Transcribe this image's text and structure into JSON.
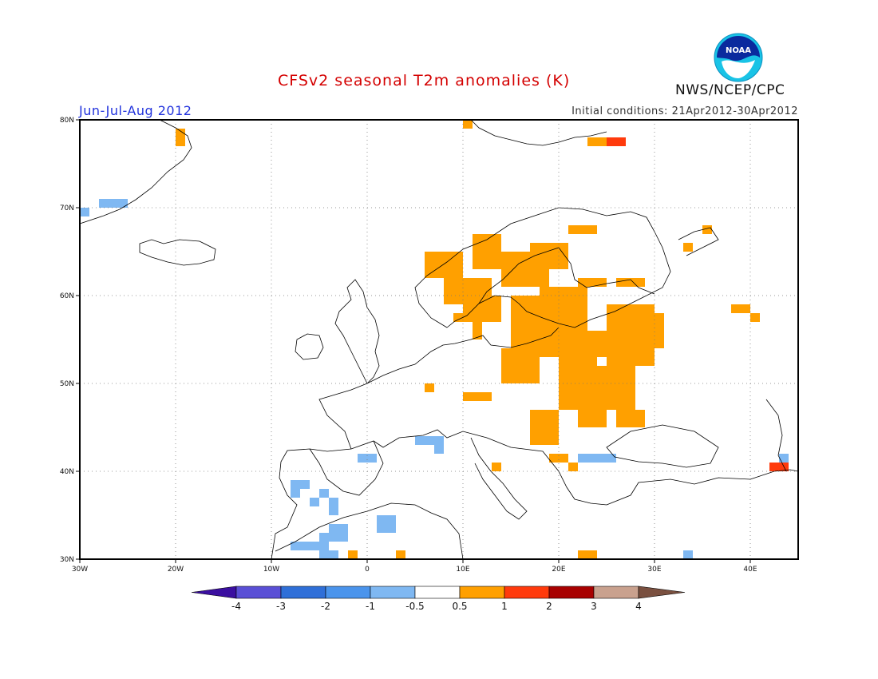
{
  "title": "CFSv2 seasonal T2m anomalies (K)",
  "season": "Jun-Jul-Aug 2012",
  "initial_conditions": "Initial conditions: 21Apr2012-30Apr2012",
  "agency": "NWS/NCEP/CPC",
  "logo_text": "NOAA",
  "map": {
    "lon_range": [
      -30,
      45
    ],
    "lat_range": [
      30,
      80
    ],
    "lat_labels": [
      "80N",
      "70N",
      "60N",
      "50N",
      "40N",
      "30N"
    ],
    "lon_labels": [
      "30W",
      "20W",
      "10W",
      "0",
      "10E",
      "20E",
      "30E",
      "40E"
    ],
    "grid": "dotted every 10 degrees"
  },
  "colorbar": {
    "labels": [
      "-4",
      "-3",
      "-2",
      "-1",
      "-0.5",
      "0.5",
      "1",
      "2",
      "3",
      "4"
    ],
    "colors": [
      "#3b0fa0",
      "#5a4fd6",
      "#2f6fd8",
      "#4a94ec",
      "#7fb8f2",
      "#ffffff",
      "#ffa000",
      "#ff3a0c",
      "#a80000",
      "#c9a18e",
      "#7a5040"
    ]
  },
  "anomaly_colors": {
    "warm": "#ffa000",
    "hot": "#ff3a0c",
    "cool": "#7fb8f2",
    "cool2": "#4a94ec"
  },
  "cells": {
    "warm": [
      [
        10,
        57,
        4,
        3
      ],
      [
        8,
        59,
        5,
        3
      ],
      [
        6,
        62,
        4,
        3
      ],
      [
        14,
        61,
        5,
        4
      ],
      [
        17,
        63,
        4,
        3
      ],
      [
        11,
        63,
        3,
        4
      ],
      [
        18,
        54,
        5,
        7
      ],
      [
        15,
        53,
        6,
        7
      ],
      [
        22,
        53,
        3,
        3
      ],
      [
        25,
        52,
        5,
        7
      ],
      [
        28,
        54,
        3,
        4
      ],
      [
        20,
        47,
        4,
        7
      ],
      [
        24,
        47,
        4,
        5
      ],
      [
        14,
        50,
        4,
        4
      ],
      [
        10,
        48,
        3,
        1
      ],
      [
        6,
        49,
        1,
        1
      ],
      [
        17,
        43,
        3,
        4
      ],
      [
        22,
        45,
        3,
        3
      ],
      [
        26,
        45,
        3,
        2
      ],
      [
        19,
        41,
        2,
        1
      ],
      [
        13,
        40,
        1,
        1
      ],
      [
        21,
        40,
        1,
        1
      ],
      [
        22,
        30,
        2,
        1
      ],
      [
        3,
        30,
        1,
        1
      ],
      [
        -2,
        30,
        1,
        1
      ],
      [
        23,
        77,
        2,
        1
      ],
      [
        21,
        67,
        3,
        1
      ],
      [
        33,
        65,
        1,
        1
      ],
      [
        35,
        67,
        1,
        1
      ],
      [
        38,
        58,
        2,
        1
      ],
      [
        40,
        57,
        1,
        1
      ],
      [
        -20,
        77,
        1,
        2
      ],
      [
        10,
        79,
        1,
        1
      ],
      [
        22,
        61,
        3,
        1
      ],
      [
        26,
        61,
        3,
        1
      ],
      [
        13,
        64,
        2,
        1
      ],
      [
        12,
        61,
        1,
        1
      ],
      [
        17,
        61,
        1,
        1
      ],
      [
        19,
        56,
        1,
        1
      ],
      [
        9,
        57,
        1,
        1
      ],
      [
        15,
        56,
        1,
        1
      ],
      [
        11,
        55,
        1,
        2
      ],
      [
        18,
        45,
        2,
        2
      ]
    ],
    "hot": [
      [
        25,
        77,
        2,
        1
      ],
      [
        42,
        40,
        2,
        1
      ]
    ],
    "cool": [
      [
        -30,
        69,
        1,
        1
      ],
      [
        -28,
        70,
        3,
        1
      ],
      [
        -7,
        38,
        1,
        1
      ],
      [
        -5,
        37,
        1,
        1
      ],
      [
        -4,
        35,
        1,
        2
      ],
      [
        -8,
        37,
        1,
        2
      ],
      [
        -6,
        36,
        1,
        1
      ],
      [
        -1,
        41,
        2,
        1
      ],
      [
        5,
        43,
        3,
        1
      ],
      [
        7,
        42,
        1,
        1
      ],
      [
        22,
        41,
        4,
        1
      ],
      [
        1,
        33,
        2,
        2
      ],
      [
        -8,
        31,
        4,
        1
      ],
      [
        -5,
        32,
        3,
        1
      ],
      [
        -4,
        33,
        2,
        1
      ],
      [
        -5,
        30,
        2,
        1
      ],
      [
        33,
        30,
        1,
        1
      ],
      [
        43,
        41,
        1,
        1
      ]
    ]
  }
}
